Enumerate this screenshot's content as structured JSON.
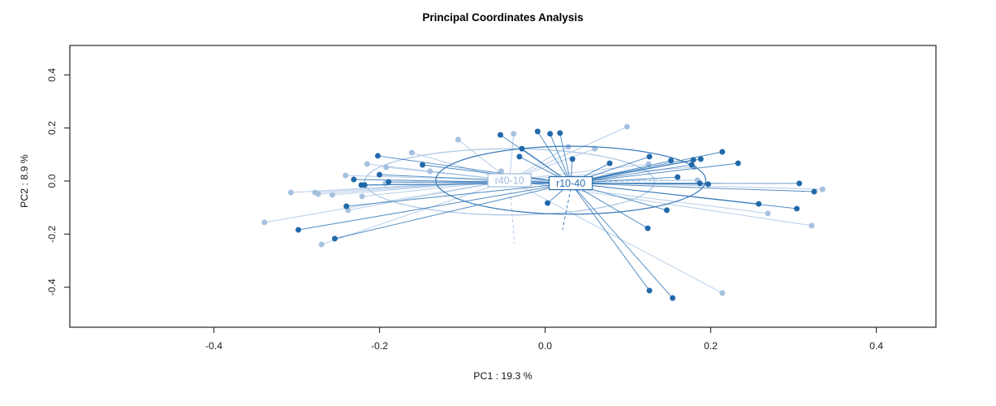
{
  "title": "Principal Coordinates Analysis",
  "chart_data": {
    "type": "scatter",
    "subtype": "pcoa-ordination-spider",
    "title": "Principal Coordinates Analysis",
    "xlabel": "PC1 : 19.3 %",
    "ylabel": "PC2 : 8.9 %",
    "xlim": [
      -0.574,
      0.472
    ],
    "ylim": [
      -0.551,
      0.511
    ],
    "xtick_values": [
      -0.4,
      -0.2,
      0.0,
      0.2,
      0.4
    ],
    "xtick_labels": [
      "-0.4",
      "-0.2",
      "0.0",
      "0.2",
      "0.4"
    ],
    "ytick_values": [
      -0.4,
      -0.2,
      0.0,
      0.2,
      0.4
    ],
    "ytick_labels": [
      "-0.4",
      "-0.2",
      "0.0",
      "0.2",
      "0.4"
    ],
    "grid": false,
    "legend_position": "none",
    "colors": {
      "axis": "#333333",
      "tick_text": "#1a1a1a",
      "title_text": "#000000"
    },
    "groups": [
      {
        "name": "r40-10",
        "line_color": "#a6c3e3",
        "point_color": "#a6c1e0",
        "label_text_color": "#9fbbdd",
        "centroid": [
          -0.043,
          0.003
        ],
        "ellipse": {
          "cx": -0.043,
          "cy": -0.003,
          "rx": 0.175,
          "ry": 0.125
        },
        "points": [
          [
            -0.161,
            0.107
          ],
          [
            -0.215,
            0.064
          ],
          [
            -0.241,
            0.021
          ],
          [
            -0.192,
            0.052
          ],
          [
            -0.193,
            -0.009
          ],
          [
            -0.139,
            0.037
          ],
          [
            -0.307,
            -0.043
          ],
          [
            -0.278,
            -0.043
          ],
          [
            -0.274,
            -0.049
          ],
          [
            -0.257,
            -0.052
          ],
          [
            -0.221,
            -0.058
          ],
          [
            -0.238,
            -0.11
          ],
          [
            -0.339,
            -0.156
          ],
          [
            -0.27,
            -0.239
          ],
          [
            -0.105,
            0.156
          ],
          [
            -0.038,
            0.178
          ],
          [
            0.099,
            0.205
          ],
          [
            -0.053,
            0.037
          ],
          [
            0.028,
            0.129
          ],
          [
            0.06,
            0.122
          ],
          [
            0.125,
            0.064
          ],
          [
            0.18,
            0.052
          ],
          [
            0.184,
            0.003
          ],
          [
            0.269,
            -0.122
          ],
          [
            0.322,
            -0.168
          ],
          [
            0.335,
            -0.031
          ],
          [
            0.214,
            -0.422
          ]
        ],
        "dashed_lines": [
          [
            [
              -0.218,
              -0.015
            ],
            [
              0.184,
              0.003
            ]
          ],
          [
            [
              -0.042,
              -0.037
            ],
            [
              -0.037,
              -0.236
            ]
          ]
        ]
      },
      {
        "name": "r10-40",
        "line_color": "#2e74b5",
        "point_color": "#2169ab",
        "label_text_color": "#2a6fad",
        "centroid": [
          0.031,
          -0.008
        ],
        "ellipse": {
          "cx": 0.031,
          "cy": 0.003,
          "rx": 0.163,
          "ry": 0.128
        },
        "points": [
          [
            -0.202,
            0.095
          ],
          [
            -0.148,
            0.061
          ],
          [
            -0.231,
            0.006
          ],
          [
            -0.2,
            0.024
          ],
          [
            -0.222,
            -0.015
          ],
          [
            -0.218,
            -0.015
          ],
          [
            -0.189,
            -0.003
          ],
          [
            -0.24,
            -0.095
          ],
          [
            -0.298,
            -0.184
          ],
          [
            -0.254,
            -0.217
          ],
          [
            -0.054,
            0.174
          ],
          [
            -0.009,
            0.187
          ],
          [
            0.006,
            0.178
          ],
          [
            0.018,
            0.181
          ],
          [
            -0.028,
            0.122
          ],
          [
            -0.031,
            0.092
          ],
          [
            0.033,
            0.083
          ],
          [
            0.078,
            0.067
          ],
          [
            0.126,
            0.092
          ],
          [
            0.152,
            0.077
          ],
          [
            0.179,
            0.08
          ],
          [
            0.188,
            0.083
          ],
          [
            0.214,
            0.11
          ],
          [
            0.233,
            0.067
          ],
          [
            0.16,
            0.015
          ],
          [
            0.187,
            -0.009
          ],
          [
            0.197,
            -0.012
          ],
          [
            0.258,
            -0.086
          ],
          [
            0.304,
            -0.104
          ],
          [
            0.307,
            -0.009
          ],
          [
            0.325,
            -0.04
          ],
          [
            0.003,
            -0.083
          ],
          [
            0.124,
            -0.178
          ],
          [
            0.147,
            -0.11
          ],
          [
            0.126,
            -0.413
          ],
          [
            0.154,
            -0.441
          ],
          [
            0.177,
            0.061
          ]
        ],
        "dashed_lines": [
          [
            [
              0.031,
              -0.028
            ],
            [
              0.021,
              -0.184
            ]
          ]
        ]
      }
    ]
  }
}
